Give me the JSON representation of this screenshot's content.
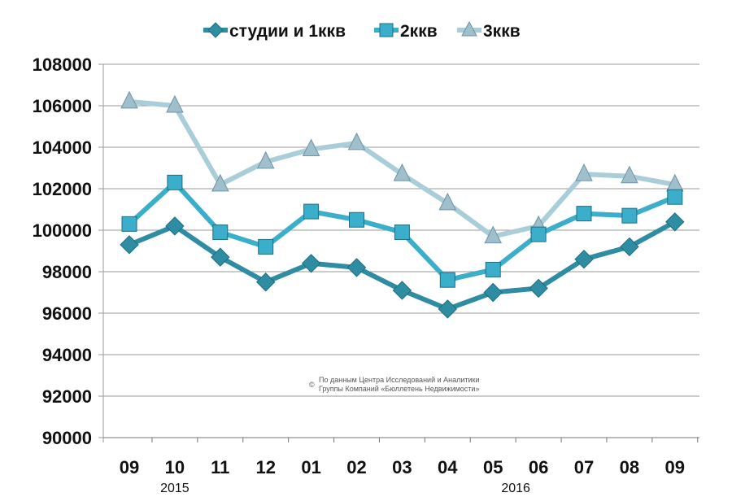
{
  "chart_data": {
    "type": "line",
    "categories": [
      "09",
      "10",
      "11",
      "12",
      "01",
      "02",
      "03",
      "04",
      "05",
      "06",
      "07",
      "08",
      "09"
    ],
    "year_labels": [
      {
        "label": "2015",
        "category_index": 1
      },
      {
        "label": "2016",
        "category_index": 8.5
      }
    ],
    "ylim": [
      90000,
      108000
    ],
    "yticks": [
      90000,
      92000,
      94000,
      96000,
      98000,
      100000,
      102000,
      104000,
      106000,
      108000
    ],
    "grid": true,
    "legend_position": "top",
    "series": [
      {
        "name": "студии и 1ккв",
        "marker": "diamond",
        "color": "#2e8ca3",
        "values": [
          99300,
          100200,
          98700,
          97500,
          98400,
          98200,
          97100,
          96200,
          97000,
          97200,
          98600,
          99200,
          100400
        ]
      },
      {
        "name": "2ккв",
        "marker": "square",
        "color": "#3aaecb",
        "values": [
          100300,
          102300,
          99900,
          99200,
          100900,
          100500,
          99900,
          97600,
          98100,
          99800,
          100800,
          100700,
          101600
        ]
      },
      {
        "name": "3ккв",
        "marker": "triangle",
        "color": "#a9cdd9",
        "values": [
          106200,
          106000,
          102200,
          103300,
          103900,
          104200,
          102700,
          101300,
          99700,
          100200,
          102700,
          102600,
          102200
        ]
      }
    ],
    "annotation": {
      "symbol": "©",
      "line1": "По данным Центра Исследований и Аналитики",
      "line2": "Группы Компаний «Бюллетень Недвижимости»"
    }
  }
}
